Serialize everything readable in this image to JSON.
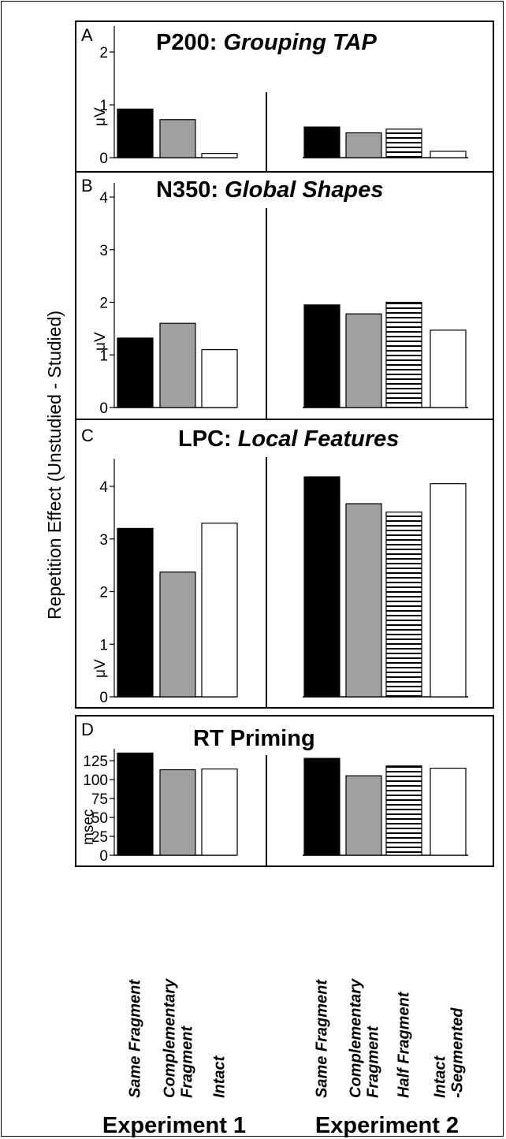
{
  "figure": {
    "ylabel": "Repetition Effect (Unstudied - Studied)",
    "experiments": [
      "Experiment 1",
      "Experiment 2"
    ],
    "categories": {
      "exp1": [
        [
          "Same Fragment"
        ],
        [
          "Complementary",
          "Fragment"
        ],
        [
          "Intact"
        ]
      ],
      "exp2": [
        [
          "Same Fragment"
        ],
        [
          "Complementary",
          "Fragment"
        ],
        [
          "Half Fragment"
        ],
        [
          "Intact",
          "-Segmented"
        ]
      ]
    },
    "fills": {
      "same_fragment": "#000000",
      "complementary_fragment": "#a0a0a0",
      "intact": "#ffffff",
      "half_fragment": "horizontal-stripes"
    }
  },
  "chart_data": [
    {
      "panel": "A",
      "type": "bar",
      "title_prefix": "P200: ",
      "title_italic": "Grouping TAP",
      "unit": "μV",
      "ylim": [
        0,
        2
      ],
      "yticks": [
        0,
        1,
        2
      ],
      "exp1": [
        0.92,
        0.72,
        0.08
      ],
      "exp2": [
        0.58,
        0.47,
        0.54,
        0.12
      ]
    },
    {
      "panel": "B",
      "type": "bar",
      "title_prefix": "N350: ",
      "title_italic": "Global Shapes",
      "unit": "μV",
      "ylim": [
        0,
        4
      ],
      "yticks": [
        0,
        1,
        2,
        3,
        4
      ],
      "exp1": [
        1.32,
        1.6,
        1.1
      ],
      "exp2": [
        1.95,
        1.78,
        2.0,
        1.47
      ]
    },
    {
      "panel": "C",
      "type": "bar",
      "title_prefix": "LPC: ",
      "title_italic": "Local Features",
      "unit": "μV",
      "ylim": [
        0,
        4
      ],
      "yticks": [
        0,
        1,
        2,
        3,
        4
      ],
      "exp1": [
        3.2,
        2.37,
        3.3
      ],
      "exp2": [
        4.18,
        3.67,
        3.51,
        4.05
      ]
    },
    {
      "panel": "D",
      "type": "bar",
      "title_prefix": "RT Priming",
      "title_italic": "",
      "unit": "msec",
      "ylim": [
        0,
        125
      ],
      "yticks": [
        0,
        25,
        50,
        75,
        100,
        125
      ],
      "exp1": [
        135,
        113,
        114
      ],
      "exp2": [
        128,
        105,
        118,
        115
      ]
    }
  ]
}
